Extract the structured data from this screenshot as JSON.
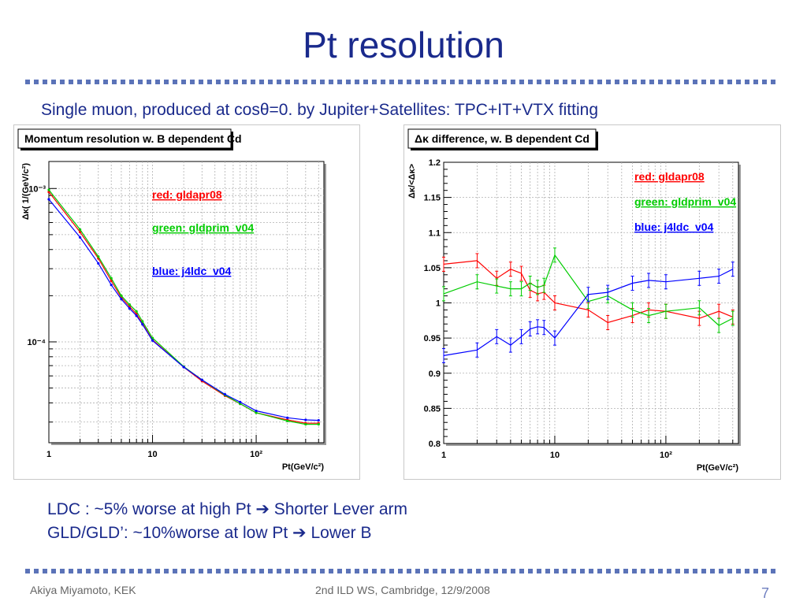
{
  "slide": {
    "title": "Pt resolution",
    "subtitle": "Single muon, produced at cosθ=0. by Jupiter+Satellites: TPC+IT+VTX fitting",
    "notes": [
      "LDC : ~5% worse at high Pt ➔ Shorter Lever arm",
      "GLD/GLD’: ~10%worse at low Pt ➔ Lower B"
    ],
    "footer_left": "Akiya Miyamoto, KEK",
    "footer_center": "2nd ILD WS, Cambridge, 12/9/2008",
    "page_number": "7"
  },
  "colors": {
    "red": "#ff0000",
    "green": "#00cc00",
    "blue": "#0000ff",
    "title": "#1a2a8c"
  },
  "chart_data": [
    {
      "type": "line",
      "title": "Momentum resolution w. B dependent Cd",
      "xlabel": "Pt(GeV/c²)",
      "ylabel": "Δκ( 1/(GeV/c²)",
      "xscale": "log",
      "yscale": "log",
      "xlim": [
        1,
        450
      ],
      "ylim": [
        2.2e-05,
        0.0015
      ],
      "grid": true,
      "legend_position": "center",
      "x_ticks": [
        "1",
        "10",
        "10²"
      ],
      "y_ticks": [
        "10⁻³",
        "10⁻⁴"
      ],
      "x": [
        1,
        2,
        3,
        4,
        5,
        6,
        7,
        8,
        10,
        20,
        30,
        50,
        70,
        100,
        200,
        300,
        400
      ],
      "series": [
        {
          "name": "red: gldapr08",
          "color": "#ff0000",
          "values": [
            0.00095,
            0.00052,
            0.00035,
            0.00025,
            0.000195,
            0.00017,
            0.000152,
            0.000132,
            0.000103,
            6.85e-05,
            5.55e-05,
            4.45e-05,
            3.95e-05,
            3.45e-05,
            3.1e-05,
            2.95e-05,
            2.95e-05
          ]
        },
        {
          "name": "green: gldprim_v04",
          "color": "#00cc00",
          "values": [
            0.00098,
            0.00054,
            0.00036,
            0.00026,
            0.0002,
            0.000175,
            0.000158,
            0.000136,
            0.000106,
            6.9e-05,
            5.65e-05,
            4.5e-05,
            3.95e-05,
            3.45e-05,
            3.05e-05,
            2.9e-05,
            2.9e-05
          ]
        },
        {
          "name": "blue: j4ldc_v04",
          "color": "#0000ff",
          "values": [
            0.00085,
            0.00048,
            0.000325,
            0.000235,
            0.00019,
            0.000165,
            0.000148,
            0.00013,
            0.000102,
            6.85e-05,
            5.65e-05,
            4.55e-05,
            4.05e-05,
            3.55e-05,
            3.2e-05,
            3.1e-05,
            3.08e-05
          ]
        }
      ]
    },
    {
      "type": "line",
      "title": "Δκ difference, w. B dependent Cd",
      "xlabel": "Pt(GeV/c²)",
      "ylabel": "Δκ/<Δκ>",
      "xscale": "log",
      "xlim": [
        1,
        450
      ],
      "ylim": [
        0.8,
        1.2
      ],
      "grid": true,
      "legend_position": "top-right",
      "x_ticks": [
        "1",
        "10",
        "10²"
      ],
      "y_ticks": [
        "0.8",
        "0.85",
        "0.9",
        "0.95",
        "1",
        "1.05",
        "1.1",
        "1.15",
        "1.2"
      ],
      "x": [
        1,
        2,
        3,
        4,
        5,
        6,
        7,
        8,
        10,
        20,
        30,
        50,
        70,
        100,
        200,
        300,
        400
      ],
      "series": [
        {
          "name": "red: gldapr08",
          "color": "#ff0000",
          "values": [
            1.055,
            1.06,
            1.035,
            1.048,
            1.042,
            1.018,
            1.013,
            1.015,
            1.0,
            0.99,
            0.972,
            0.982,
            0.99,
            0.988,
            0.978,
            0.988,
            0.98
          ]
        },
        {
          "name": "green: gldprim_v04",
          "color": "#00cc00",
          "values": [
            1.013,
            1.03,
            1.024,
            1.02,
            1.02,
            1.028,
            1.022,
            1.025,
            1.068,
            1.002,
            1.01,
            0.99,
            0.982,
            0.988,
            0.993,
            0.968,
            0.978
          ]
        },
        {
          "name": "blue: j4ldc_v04",
          "color": "#0000ff",
          "values": [
            0.925,
            0.933,
            0.952,
            0.94,
            0.952,
            0.963,
            0.966,
            0.965,
            0.95,
            1.012,
            1.015,
            1.028,
            1.032,
            1.03,
            1.035,
            1.038,
            1.048
          ]
        }
      ]
    }
  ]
}
